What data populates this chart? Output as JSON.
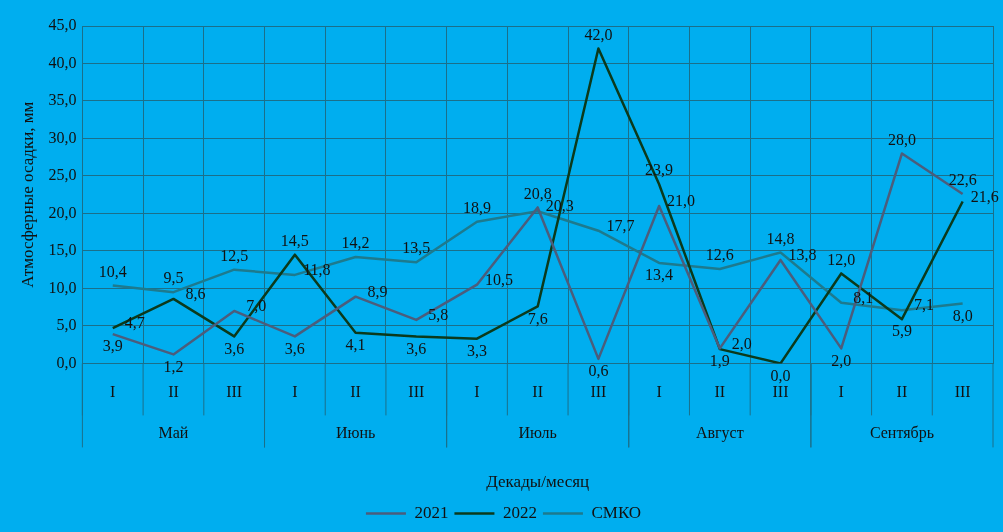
{
  "chart_data": {
    "type": "line",
    "xlabel": "Декады/месяц",
    "ylabel": "Атмосферные осадки, мм",
    "categories": [
      "I",
      "II",
      "III",
      "I",
      "II",
      "III",
      "I",
      "II",
      "III",
      "I",
      "II",
      "III",
      "I",
      "II",
      "III"
    ],
    "annotations": [
      "Май",
      "Июнь",
      "Июль",
      "Август",
      "Сентябрь"
    ],
    "ylim": [
      0,
      45
    ],
    "yticks": [
      {
        "value": 0,
        "label": "0,0"
      },
      {
        "value": 5,
        "label": "5,0"
      },
      {
        "value": 10,
        "label": "10,0"
      },
      {
        "value": 15,
        "label": "15,0"
      },
      {
        "value": 20,
        "label": "20,0"
      },
      {
        "value": 25,
        "label": "25,0"
      },
      {
        "value": 30,
        "label": "30,0"
      },
      {
        "value": 35,
        "label": "35,0"
      },
      {
        "value": 40,
        "label": "40,0"
      },
      {
        "value": 45,
        "label": "45,0"
      }
    ],
    "grid": true,
    "legend": "bottom",
    "marker": "none",
    "line_style": "solid",
    "series": [
      {
        "name": "2021",
        "color": "#4b5d7c",
        "values": [
          3.9,
          1.2,
          7.0,
          3.6,
          8.9,
          5.8,
          10.5,
          20.8,
          0.6,
          21.0,
          2.0,
          13.8,
          2.0,
          28.0,
          22.6
        ],
        "value_labels": [
          "3,9",
          "1,2",
          "7,0",
          "3,6",
          "8,9",
          "5,8",
          "10,5",
          "20,8",
          "0,6",
          "21,0",
          "2,0",
          "13,8",
          "2,0",
          "28,0",
          "22,6"
        ]
      },
      {
        "name": "2022",
        "color": "#0b3a1c",
        "values": [
          4.7,
          8.6,
          3.6,
          14.5,
          4.1,
          3.6,
          3.3,
          7.6,
          42.0,
          23.9,
          1.9,
          0.0,
          12.0,
          5.9,
          21.6
        ],
        "value_labels": [
          "4,7",
          "8,6",
          "3,6",
          "14,5",
          "4,1",
          "3,6",
          "3,3",
          "7,6",
          "42,0",
          "23,9",
          "1,9",
          "0,0",
          "12,0",
          "5,9",
          "21,6"
        ]
      },
      {
        "name": "СМКО",
        "color": "#1d7a8e",
        "values": [
          10.4,
          9.5,
          12.5,
          11.8,
          14.2,
          13.5,
          18.9,
          20.3,
          17.7,
          13.4,
          12.6,
          14.8,
          8.1,
          7.1,
          8.0
        ],
        "value_labels": [
          "10,4",
          "9,5",
          "12,5",
          "11,8",
          "14,2",
          "13,5",
          "18,9",
          "20,3",
          "17,7",
          "13,4",
          "12,6",
          "14,8",
          "8,1",
          "7,1",
          "8,0"
        ]
      }
    ]
  }
}
